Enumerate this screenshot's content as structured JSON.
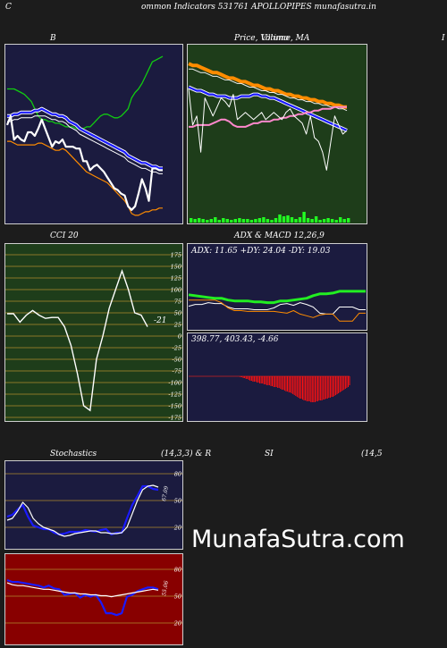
{
  "header": {
    "left_letter": "C",
    "title": "ommon  Indicators 531761 APOLLOPIPES munafasutra.in"
  },
  "bb_panel": {
    "label": "B"
  },
  "price_panel": {
    "label": "Price,  Volume,  MA",
    "label_overlay": "Ultimo",
    "right_letter": "I"
  },
  "cci_panel": {
    "label": "CCI 20",
    "value_label": "-21"
  },
  "adx_panel": {
    "label": "ADX  & MACD 12,26,9",
    "adx_text": "ADX: 11.65  +DY: 24.04  -DY: 19.03",
    "macd_text": "398.77,  403.43,  -4.66"
  },
  "stoch_panel": {
    "label_left": "Stochastics",
    "label_right": "(14,3,3) & R",
    "value_label": "67.09"
  },
  "rsi_panel": {
    "label_left": "SI",
    "label_right": "(14,5",
    "value_label": "55.06"
  },
  "watermark": "MunafaSutra.com",
  "colors": {
    "navy": "#1b1b3f",
    "green_bg": "#1e3d1a",
    "red_bg": "#880000",
    "grid": "#b08a2e",
    "orange": "#ff8c00",
    "blue": "#1a1aff"
  },
  "chart_data": [
    {
      "type": "line",
      "name": "bollinger",
      "series": [
        {
          "values": [
            75,
            75,
            75,
            74,
            73,
            72,
            70,
            68,
            64,
            60,
            58,
            58,
            57,
            57,
            56,
            56,
            55,
            54,
            54,
            54,
            53,
            53,
            53,
            54,
            54,
            56,
            58,
            60,
            61,
            61,
            60,
            59,
            59,
            60,
            62,
            64,
            70,
            73,
            75,
            78,
            82,
            86,
            90,
            91,
            92,
            93
          ]
        },
        {
          "values": [
            60,
            60,
            61,
            61,
            62,
            62,
            62,
            62,
            63,
            63,
            64,
            63,
            62,
            61,
            61,
            60,
            60,
            59,
            57,
            56,
            55,
            53,
            52,
            51,
            50,
            49,
            48,
            47,
            46,
            45,
            44,
            43,
            42,
            41,
            40,
            38,
            37,
            36,
            35,
            34,
            34,
            33,
            32,
            32,
            31,
            31
          ]
        },
        {
          "values": [
            57,
            57,
            58,
            58,
            59,
            59,
            59,
            59,
            60,
            60,
            60,
            60,
            59,
            58,
            58,
            57,
            57,
            56,
            54,
            53,
            52,
            50,
            49,
            48,
            47,
            46,
            45,
            44,
            43,
            42,
            41,
            40,
            39,
            38,
            37,
            35,
            34,
            33,
            32,
            31,
            31,
            30,
            29,
            29,
            28,
            28
          ]
        },
        {
          "values": [
            46,
            46,
            45,
            44,
            44,
            44,
            44,
            44,
            44,
            45,
            45,
            44,
            43,
            42,
            41,
            41,
            42,
            41,
            39,
            37,
            35,
            33,
            31,
            29,
            28,
            27,
            26,
            25,
            24,
            23,
            21,
            19,
            17,
            15,
            13,
            10,
            6,
            5,
            5,
            6,
            7,
            7,
            8,
            8,
            9,
            9
          ]
        },
        {
          "values": [
            55,
            60,
            47,
            49,
            47,
            46,
            51,
            51,
            49,
            53,
            58,
            53,
            48,
            43,
            46,
            45,
            47,
            43,
            43,
            43,
            42,
            42,
            35,
            35,
            30,
            32,
            33,
            31,
            29,
            26,
            23,
            20,
            19,
            17,
            16,
            10,
            8,
            10,
            17,
            25,
            20,
            13,
            31,
            31,
            30,
            30
          ]
        }
      ]
    },
    {
      "type": "line",
      "name": "price-volume-ma",
      "series": [
        {
          "values": [
            89,
            88,
            88,
            87,
            86,
            85,
            84,
            84,
            83,
            82,
            81,
            81,
            80,
            79,
            79,
            78,
            77,
            77,
            76,
            75,
            75,
            74,
            74,
            73,
            72,
            72,
            71,
            71,
            70,
            70,
            69,
            69,
            68,
            68,
            67,
            67,
            66,
            66,
            65,
            65
          ]
        },
        {
          "values": [
            86,
            86,
            85,
            84,
            84,
            83,
            82,
            82,
            81,
            80,
            80,
            79,
            78,
            78,
            77,
            76,
            76,
            75,
            74,
            74,
            73,
            73,
            72,
            72,
            71,
            70,
            70,
            69,
            69,
            68,
            68,
            67,
            67,
            66,
            66,
            65,
            65,
            64,
            64,
            63
          ]
        },
        {
          "values": [
            76,
            75,
            74,
            74,
            73,
            72,
            72,
            71,
            71,
            71,
            70,
            70,
            70,
            71,
            71,
            71,
            72,
            72,
            71,
            71,
            70,
            70,
            69,
            68,
            67,
            66,
            65,
            64,
            63,
            62,
            61,
            60,
            59,
            58,
            57,
            56,
            55,
            54,
            53,
            52
          ]
        },
        {
          "values": [
            54,
            54,
            55,
            55,
            55,
            55,
            56,
            57,
            58,
            58,
            57,
            55,
            54,
            54,
            54,
            55,
            56,
            56,
            57,
            57,
            57,
            58,
            58,
            59,
            59,
            60,
            60,
            61,
            61,
            62,
            62,
            63,
            63,
            64,
            64,
            64,
            65,
            65,
            65,
            65
          ]
        },
        {
          "values": [
            75,
            55,
            60,
            40,
            70,
            65,
            60,
            65,
            70,
            68,
            65,
            72,
            58,
            60,
            62,
            60,
            58,
            60,
            62,
            58,
            60,
            62,
            60,
            58,
            62,
            64,
            60,
            58,
            56,
            50,
            60,
            48,
            46,
            40,
            30,
            45,
            60,
            55,
            50,
            52
          ]
        }
      ],
      "volume": [
        5,
        4,
        5,
        4,
        3,
        4,
        6,
        3,
        5,
        4,
        3,
        4,
        5,
        4,
        4,
        3,
        4,
        5,
        6,
        4,
        3,
        5,
        9,
        7,
        8,
        6,
        4,
        6,
        12,
        5,
        4,
        7,
        3,
        4,
        5,
        4,
        3,
        6,
        4,
        5
      ]
    },
    {
      "type": "line",
      "name": "cci",
      "title": "CCI 20",
      "y_ticks": [
        175,
        150,
        125,
        100,
        75,
        50,
        25,
        0,
        -25,
        -50,
        -75,
        -100,
        -125,
        -150,
        -175
      ],
      "series": [
        {
          "values": [
            48,
            48,
            30,
            45,
            55,
            45,
            38,
            40,
            40,
            20,
            -20,
            -80,
            -150,
            -160,
            -50,
            0,
            60,
            100,
            140,
            100,
            50,
            45,
            20
          ]
        }
      ]
    },
    {
      "type": "line",
      "name": "adx",
      "series": [
        {
          "values": [
            41,
            40,
            39,
            38,
            37,
            37,
            35,
            34,
            34,
            34,
            33,
            33,
            32,
            32,
            34,
            34,
            35,
            36,
            37,
            40,
            42,
            42,
            43,
            45,
            45,
            45,
            45,
            45
          ]
        },
        {
          "values": [
            28,
            30,
            30,
            32,
            31,
            31,
            27,
            25,
            25,
            25,
            24,
            24,
            24,
            26,
            30,
            31,
            29,
            32,
            30,
            27,
            20,
            19,
            19,
            27,
            27,
            27,
            24,
            24
          ]
        },
        {
          "values": [
            35,
            35,
            35,
            35,
            35,
            32,
            26,
            23,
            23,
            22,
            22,
            22,
            22,
            22,
            21,
            20,
            23,
            19,
            17,
            15,
            18,
            19,
            19,
            11,
            11,
            11,
            20,
            20
          ]
        }
      ]
    },
    {
      "type": "bar",
      "name": "macd",
      "x": [
        0,
        1,
        2,
        3,
        4,
        5,
        6,
        7,
        8,
        9,
        10,
        11,
        12,
        13,
        14,
        15,
        16,
        17,
        18,
        19,
        20,
        21,
        22,
        23,
        24,
        25,
        26,
        27,
        28,
        29,
        30,
        31,
        32,
        33,
        34,
        35,
        36,
        37,
        38,
        39,
        40,
        41,
        42,
        43,
        44,
        45,
        46,
        47,
        48,
        49,
        50,
        51,
        52,
        53,
        54,
        55,
        56,
        57,
        58,
        59,
        60,
        61,
        62,
        63,
        64,
        65,
        66,
        67,
        68,
        69,
        70,
        71,
        72,
        73,
        74,
        75,
        76,
        77,
        78,
        79
      ],
      "values": [
        -1,
        -1,
        -2,
        -2,
        -3,
        -3,
        -4,
        -5,
        -5,
        -6,
        -6,
        -6,
        -7,
        -7,
        -8,
        -8,
        -8,
        -9,
        -9,
        -10,
        -10,
        -10,
        -11,
        -11,
        -12,
        -12,
        -12,
        -13,
        -13,
        -14,
        -15,
        -15,
        -16,
        -17,
        -17,
        -18,
        -18,
        -19,
        -20,
        -21,
        -22,
        -23,
        -24,
        -25,
        -25,
        -26,
        -27,
        -27,
        -28,
        -28,
        -28,
        -29,
        -29,
        -29,
        -29,
        -28,
        -28,
        -27,
        -27,
        -27,
        -26,
        -26,
        -25,
        -25,
        -24,
        -24,
        -23,
        -23,
        -22,
        -21,
        -20,
        -19,
        -18,
        -17,
        -16,
        -15,
        -14,
        -13,
        -12,
        -10
      ]
    },
    {
      "type": "line",
      "name": "stochastics",
      "y_ticks": [
        80,
        50,
        20
      ],
      "series": [
        {
          "values": [
            32,
            34,
            40,
            45,
            32,
            22,
            20,
            18,
            18,
            14,
            12,
            13,
            15,
            15,
            15,
            17,
            16,
            15,
            17,
            18,
            12,
            14,
            14,
            30,
            45,
            55,
            66,
            66,
            63,
            62
          ]
        },
        {
          "values": [
            28,
            30,
            38,
            48,
            42,
            30,
            24,
            20,
            18,
            16,
            12,
            10,
            11,
            13,
            14,
            15,
            16,
            16,
            14,
            14,
            13,
            13,
            14,
            20,
            35,
            50,
            62,
            66,
            67,
            65
          ]
        }
      ]
    },
    {
      "type": "line",
      "name": "rsi",
      "y_ticks": [
        80,
        50,
        20
      ],
      "series": [
        {
          "values": [
            66,
            64,
            64,
            63,
            62,
            61,
            60,
            58,
            60,
            57,
            56,
            50,
            51,
            52,
            47,
            50,
            48,
            50,
            42,
            30,
            30,
            28,
            30,
            48,
            50,
            54,
            56,
            58,
            58,
            56
          ]
        },
        {
          "values": [
            63,
            61,
            60,
            60,
            59,
            58,
            57,
            56,
            56,
            55,
            54,
            53,
            52,
            52,
            51,
            51,
            50,
            50,
            49,
            49,
            48,
            49,
            50,
            51,
            52,
            53,
            54,
            55,
            56,
            55
          ]
        }
      ]
    }
  ]
}
